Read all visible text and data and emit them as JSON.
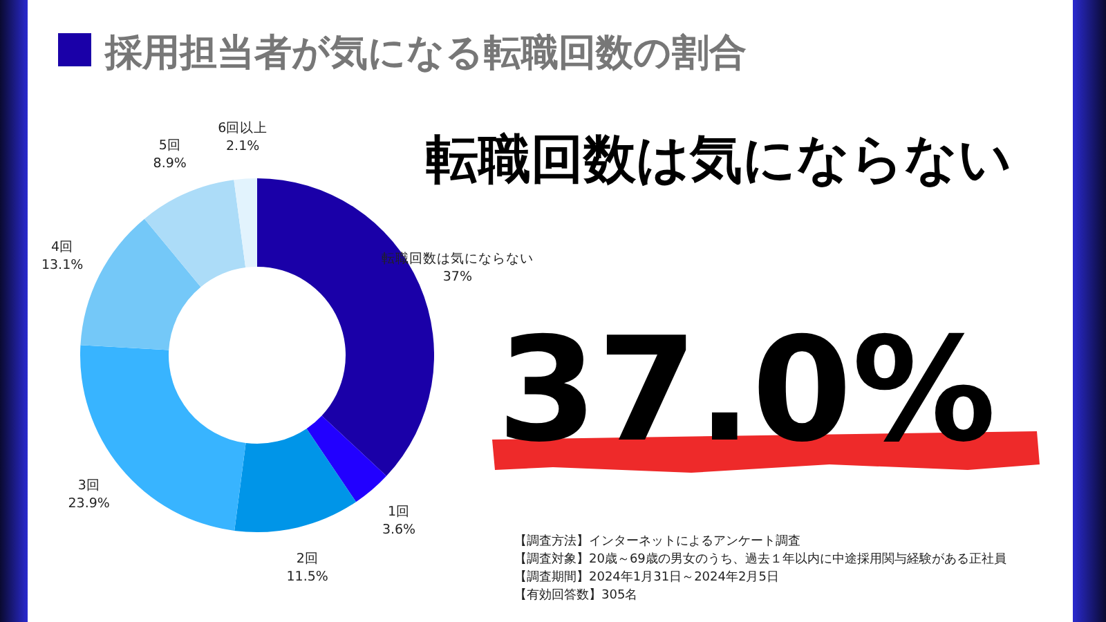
{
  "chart_data": {
    "type": "donut",
    "title": "採用担当者が気になる転職回数の割合",
    "categories": [
      "転職回数は気にならない",
      "1回",
      "2回",
      "3回",
      "4回",
      "5回",
      "6回以上"
    ],
    "values": [
      37,
      3.6,
      11.5,
      23.9,
      13.1,
      8.9,
      2.1
    ],
    "value_labels": [
      "37%",
      "3.6%",
      "11.5%",
      "23.9%",
      "13.1%",
      "8.9%",
      "2.1%"
    ],
    "colors": [
      "#1a00a8",
      "#2200ff",
      "#0095e8",
      "#38b4ff",
      "#74c8f8",
      "#acdcf8",
      "#e2f3fd"
    ],
    "annotations": [
      "転職回数は気にならない",
      "37.0%",
      "【調査方法】インターネットによるアンケート調査",
      "【調査対象】20歳～69歳の男女のうち、過去１年以内に中途採用関与経験がある正社員",
      "【調査期間】2024年1月31日～2024年2月5日",
      "【有効回答数】305名"
    ]
  }
}
